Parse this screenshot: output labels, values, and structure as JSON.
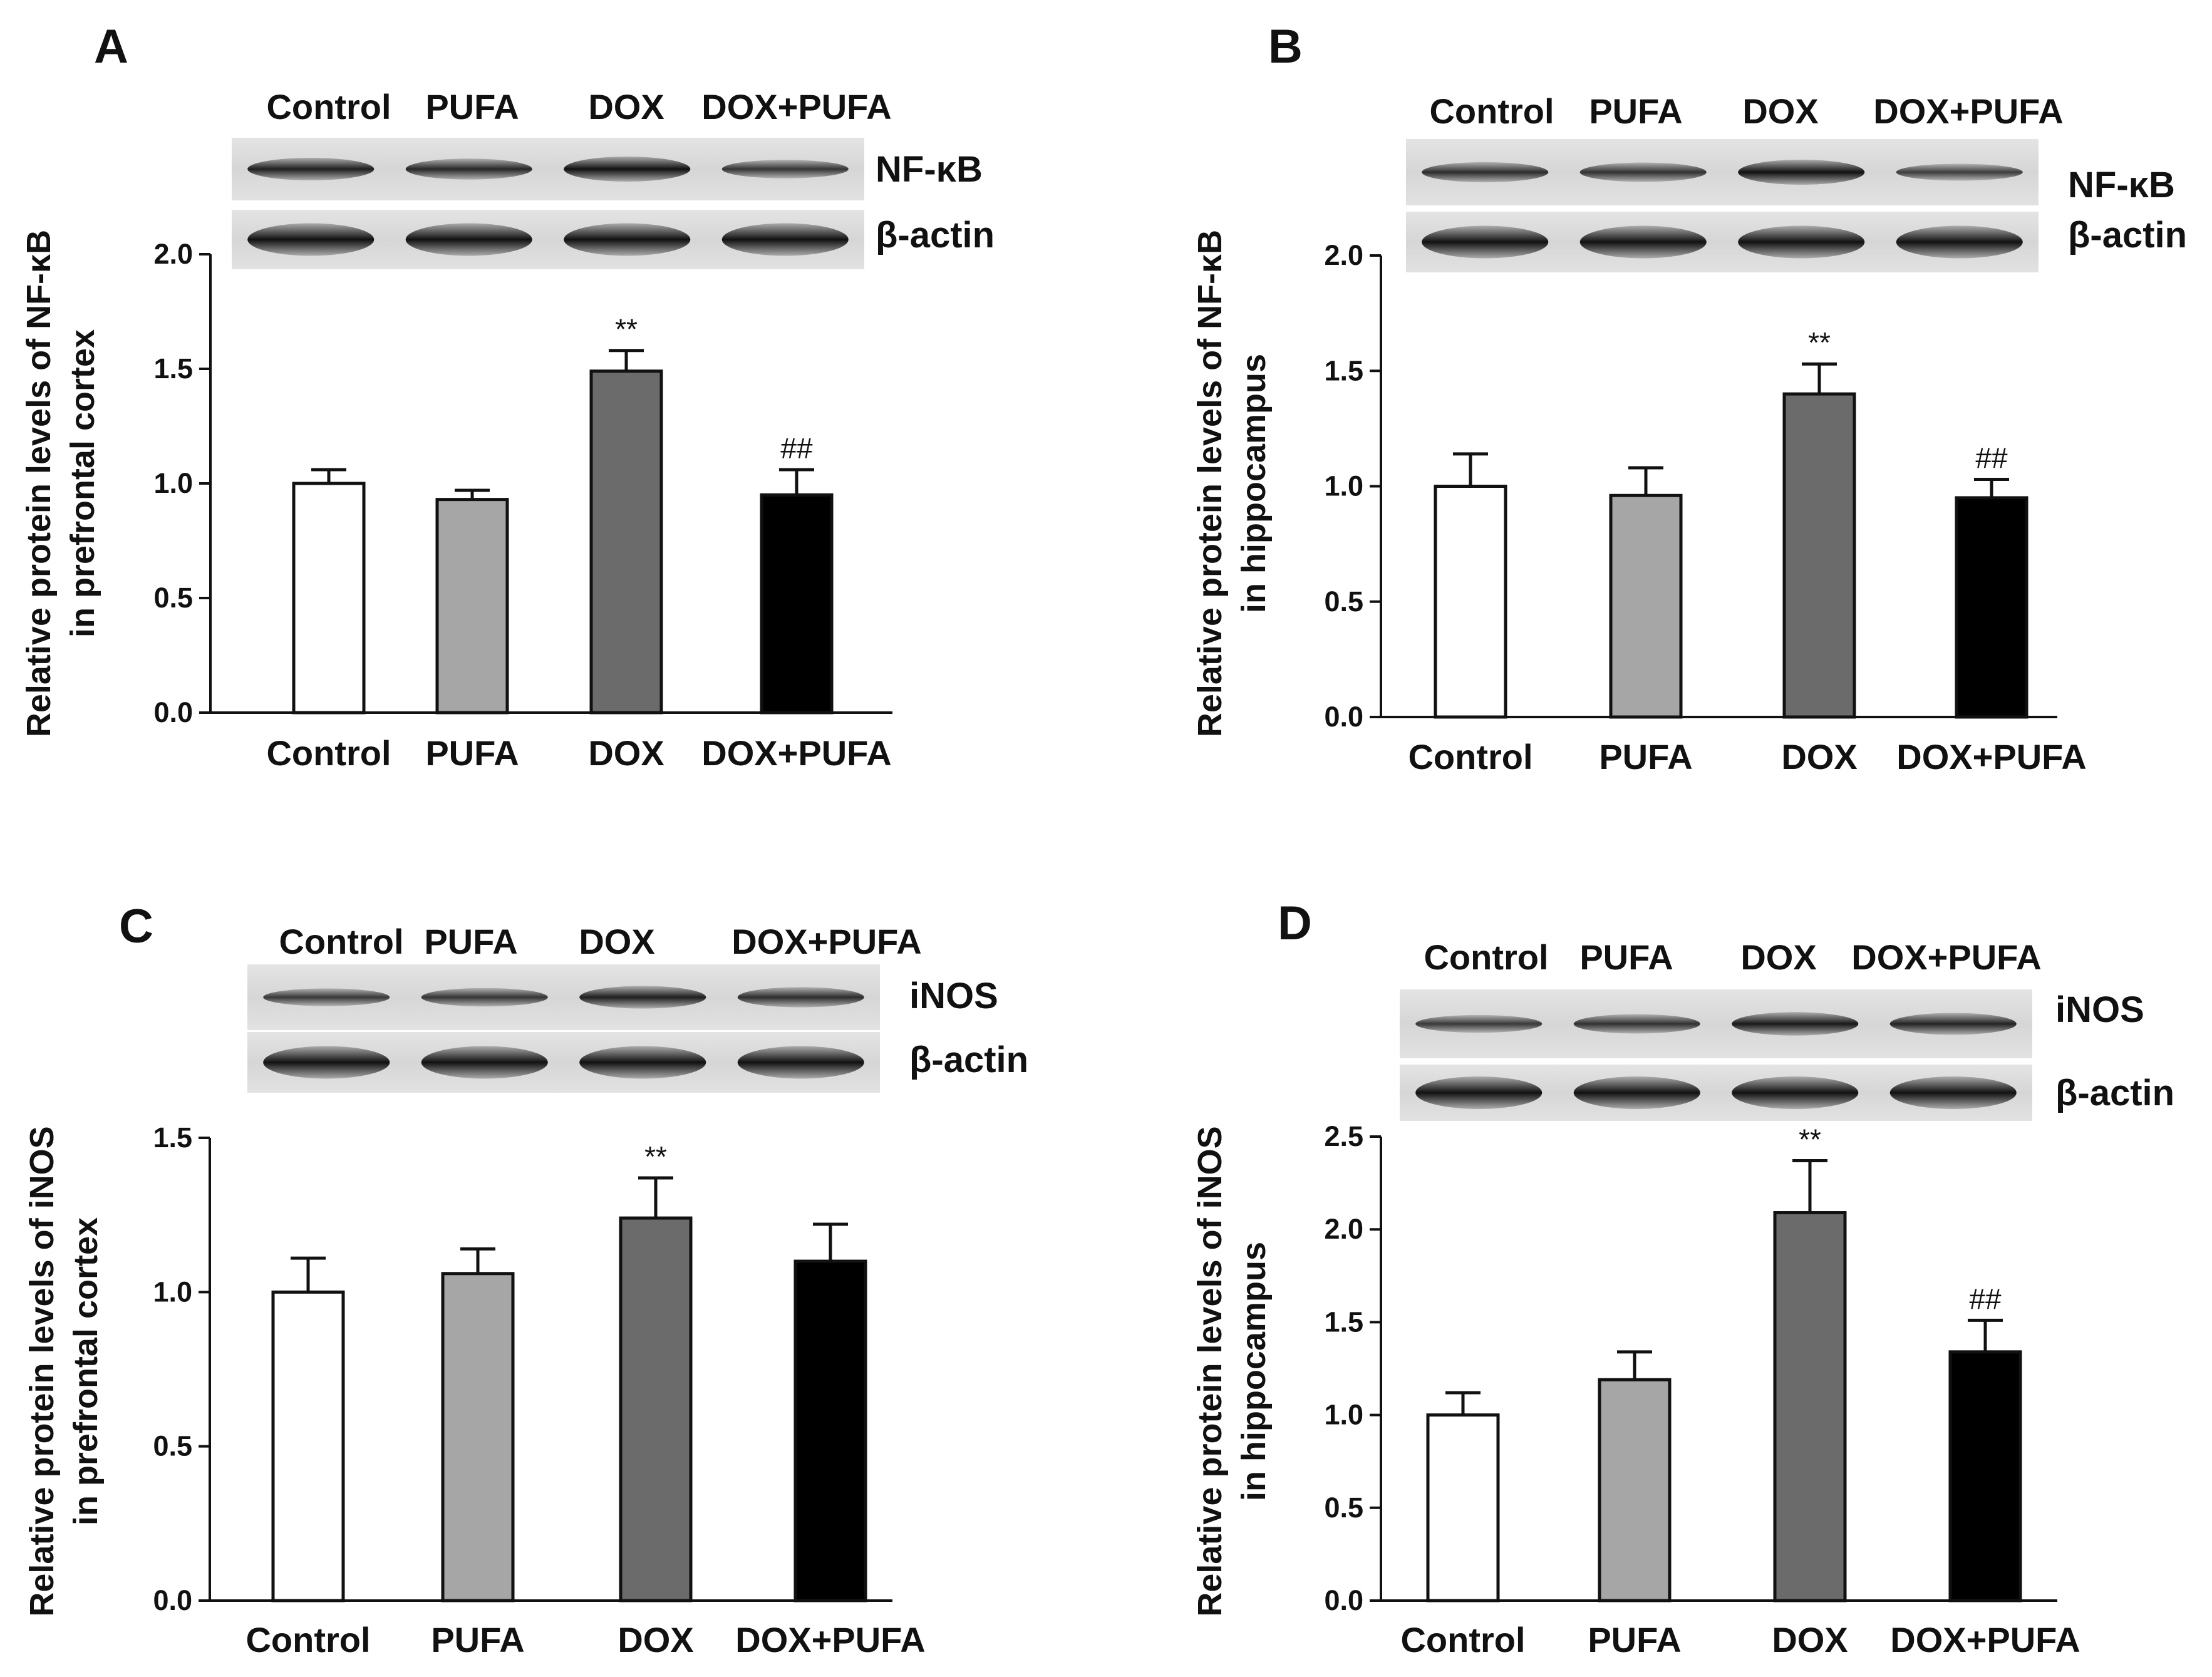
{
  "figure": {
    "groups": [
      "Control",
      "PUFA",
      "DOX",
      "DOX+PUFA"
    ],
    "colors": {
      "Control": "#ffffff",
      "PUFA": "#a6a6a6",
      "DOX": "#6b6b6b",
      "DOX+PUFA": "#000000"
    }
  },
  "chart_data": [
    {
      "panel": "A",
      "type": "bar",
      "categories": [
        "Control",
        "PUFA",
        "DOX",
        "DOX+PUFA"
      ],
      "values": [
        1.0,
        0.93,
        1.49,
        0.95
      ],
      "errors": [
        0.06,
        0.04,
        0.09,
        0.11
      ],
      "annotations": [
        "",
        "",
        "**",
        "##"
      ],
      "ylabel": [
        "Relative protein levels of NF-κB",
        "in prefrontal cortex"
      ],
      "ylim": [
        0,
        2.0
      ],
      "yticks": [
        "0.0",
        "0.5",
        "1.0",
        "1.5",
        "2.0"
      ],
      "blot_lanes": [
        "Control",
        "PUFA",
        "DOX",
        "DOX+PUFA"
      ],
      "blot_bands": [
        "NF-κB",
        "β-actin"
      ]
    },
    {
      "panel": "B",
      "type": "bar",
      "categories": [
        "Control",
        "PUFA",
        "DOX",
        "DOX+PUFA"
      ],
      "values": [
        1.0,
        0.96,
        1.4,
        0.95
      ],
      "errors": [
        0.14,
        0.12,
        0.13,
        0.08
      ],
      "annotations": [
        "",
        "",
        "**",
        "##"
      ],
      "ylabel": [
        "Relative protein levels of NF-κB",
        "in hippocampus"
      ],
      "ylim": [
        0,
        2.0
      ],
      "yticks": [
        "0.0",
        "0.5",
        "1.0",
        "1.5",
        "2.0"
      ],
      "blot_lanes": [
        "Control",
        "PUFA",
        "DOX",
        "DOX+PUFA"
      ],
      "blot_bands": [
        "NF-κB",
        "β-actin"
      ]
    },
    {
      "panel": "C",
      "type": "bar",
      "categories": [
        "Control",
        "PUFA",
        "DOX",
        "DOX+PUFA"
      ],
      "values": [
        1.0,
        1.06,
        1.24,
        1.1
      ],
      "errors": [
        0.11,
        0.08,
        0.13,
        0.12
      ],
      "annotations": [
        "",
        "",
        "**",
        ""
      ],
      "ylabel": [
        "Relative protein levels of iNOS",
        "in prefrontal cortex"
      ],
      "ylim": [
        0,
        1.5
      ],
      "yticks": [
        "0.0",
        "0.5",
        "1.0",
        "1.5"
      ],
      "blot_lanes": [
        "Control",
        "PUFA",
        "DOX",
        "DOX+PUFA"
      ],
      "blot_bands": [
        "iNOS",
        "β-actin"
      ]
    },
    {
      "panel": "D",
      "type": "bar",
      "categories": [
        "Control",
        "PUFA",
        "DOX",
        "DOX+PUFA"
      ],
      "values": [
        1.0,
        1.19,
        2.09,
        1.34
      ],
      "errors": [
        0.12,
        0.15,
        0.28,
        0.17
      ],
      "annotations": [
        "",
        "",
        "**",
        "##"
      ],
      "ylabel": [
        "Relative protein levels of iNOS",
        "in hippocampus"
      ],
      "ylim": [
        0,
        2.5
      ],
      "yticks": [
        "0.0",
        "0.5",
        "1.0",
        "1.5",
        "2.0",
        "2.5"
      ],
      "blot_lanes": [
        "Control",
        "PUFA",
        "DOX",
        "DOX+PUFA"
      ],
      "blot_bands": [
        "iNOS",
        "β-actin"
      ]
    }
  ]
}
